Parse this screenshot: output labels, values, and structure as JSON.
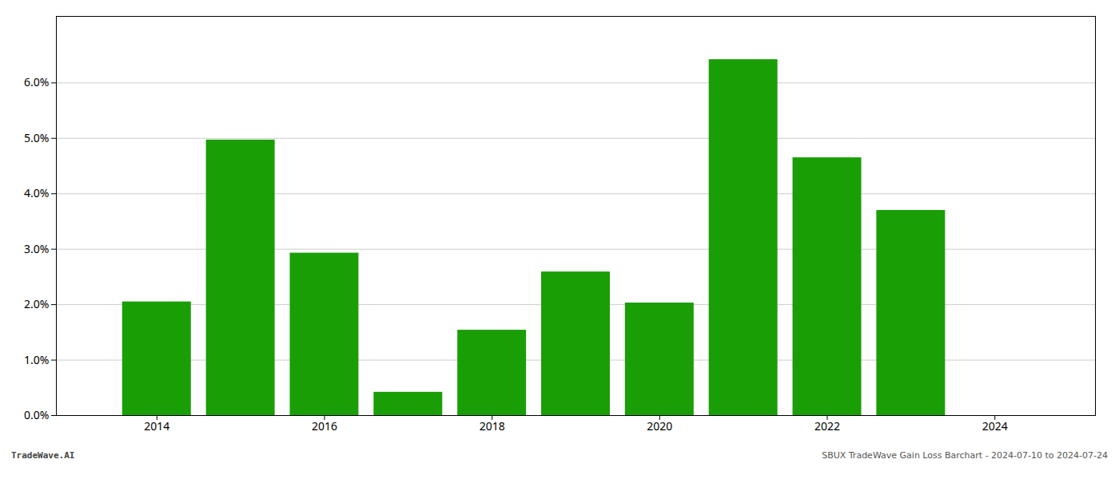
{
  "chart_data": {
    "type": "bar",
    "x": [
      2014,
      2015,
      2016,
      2017,
      2018,
      2019,
      2020,
      2021,
      2022,
      2023,
      2024
    ],
    "values": [
      0.0205,
      0.0497,
      0.0293,
      0.0042,
      0.0154,
      0.0259,
      0.0203,
      0.0642,
      0.0465,
      0.037,
      0.0
    ],
    "color": "#1a9e06",
    "xlim": [
      2012.8,
      2025.2
    ],
    "xticks": [
      2014,
      2016,
      2018,
      2020,
      2022,
      2024
    ],
    "ylim": [
      0.0,
      0.072
    ],
    "yticks": [
      {
        "value": 0.0,
        "label": "0.0%"
      },
      {
        "value": 0.01,
        "label": "1.0%"
      },
      {
        "value": 0.02,
        "label": "2.0%"
      },
      {
        "value": 0.03,
        "label": "3.0%"
      },
      {
        "value": 0.04,
        "label": "4.0%"
      },
      {
        "value": 0.05,
        "label": "5.0%"
      },
      {
        "value": 0.06,
        "label": "6.0%"
      }
    ],
    "grid": true,
    "annotations": [
      "TradeWave.AI",
      "SBUX TradeWave Gain Loss Barchart - 2024-07-10 to 2024-07-24"
    ]
  }
}
